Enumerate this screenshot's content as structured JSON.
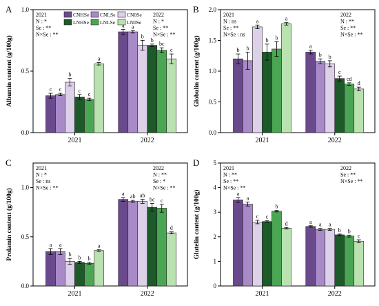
{
  "colors": {
    "CNHSe": "#6a4a8c",
    "CNLSe": "#a98ac9",
    "CN0Se": "#ddd0e9",
    "LNHSe": "#1d5a2a",
    "LNLSe": "#4aa653",
    "LN0Se": "#b9e2b0"
  },
  "legend": [
    "CNHSe",
    "CNLSe",
    "CN0Se",
    "LNHSe",
    "LNLSe",
    "LN0Se"
  ],
  "chart_data": [
    {
      "type": "bar",
      "panel": "A",
      "ylabel": "Albumin content (g/100g)",
      "categories": [
        "2021",
        "2022"
      ],
      "ylim": [
        0,
        1.0
      ],
      "yticks": [
        0.0,
        0.5,
        1.0
      ],
      "series": [
        {
          "name": "CNHSe",
          "values": [
            0.3,
            0.82
          ],
          "errors": [
            0.02,
            0.02
          ],
          "letters": [
            "c",
            "a"
          ]
        },
        {
          "name": "CNLSe",
          "values": [
            0.31,
            0.82
          ],
          "errors": [
            0.01,
            0.01
          ],
          "letters": [
            "c",
            "a"
          ]
        },
        {
          "name": "CN0Se",
          "values": [
            0.41,
            0.71
          ],
          "errors": [
            0.03,
            0.04
          ],
          "letters": [
            "b",
            "b"
          ]
        },
        {
          "name": "LNHSe",
          "values": [
            0.29,
            0.71
          ],
          "errors": [
            0.02,
            0.01
          ],
          "letters": [
            "c",
            "b"
          ]
        },
        {
          "name": "LNLSe",
          "values": [
            0.27,
            0.67
          ],
          "errors": [
            0.01,
            0.02
          ],
          "letters": [
            "c",
            "bc"
          ]
        },
        {
          "name": "LN0Se",
          "values": [
            0.56,
            0.6
          ],
          "errors": [
            0.01,
            0.04
          ],
          "letters": [
            "a",
            "c"
          ]
        }
      ],
      "stats": [
        {
          "year": "2021",
          "lines": [
            "2021",
            "N : *",
            "Se : **",
            "N×Se : **"
          ]
        },
        {
          "year": "2022",
          "lines": [
            "2022",
            "N : *",
            "Se : **",
            "N×Se : **"
          ]
        }
      ]
    },
    {
      "type": "bar",
      "panel": "B",
      "ylabel": "Globulin content (g/100g)",
      "categories": [
        "2021",
        "2022"
      ],
      "ylim": [
        0,
        2.0
      ],
      "yticks": [
        0.0,
        0.5,
        1.0,
        1.5,
        2.0
      ],
      "series": [
        {
          "name": "CNHSe",
          "values": [
            1.2,
            1.31
          ],
          "errors": [
            0.08,
            0.03
          ],
          "letters": [
            "b",
            "a"
          ]
        },
        {
          "name": "CNLSe",
          "values": [
            1.17,
            1.16
          ],
          "errors": [
            0.14,
            0.04
          ],
          "letters": [
            "b",
            "b"
          ]
        },
        {
          "name": "CN0Se",
          "values": [
            1.72,
            1.12
          ],
          "errors": [
            0.03,
            0.05
          ],
          "letters": [
            "a",
            "b"
          ]
        },
        {
          "name": "LNHSe",
          "values": [
            1.31,
            0.88
          ],
          "errors": [
            0.13,
            0.04
          ],
          "letters": [
            "b",
            "c"
          ]
        },
        {
          "name": "LNLSe",
          "values": [
            1.36,
            0.79
          ],
          "errors": [
            0.12,
            0.02
          ],
          "letters": [
            "b",
            "cd"
          ]
        },
        {
          "name": "LN0Se",
          "values": [
            1.77,
            0.71
          ],
          "errors": [
            0.02,
            0.03
          ],
          "letters": [
            "a",
            "d"
          ]
        }
      ],
      "stats": [
        {
          "year": "2021",
          "lines": [
            "2021",
            "N : ns",
            "Se : **",
            "N×Se : ns"
          ]
        },
        {
          "year": "2022",
          "lines": [
            "2022",
            "N : **",
            "Se : **",
            "N×Se : **"
          ]
        }
      ]
    },
    {
      "type": "bar",
      "panel": "C",
      "ylabel": "Prolamin content (g/100g)",
      "categories": [
        "2021",
        "2022"
      ],
      "ylim": [
        0,
        1.25
      ],
      "yticks": [
        0.0,
        0.5,
        1.0
      ],
      "series": [
        {
          "name": "CNHSe",
          "values": [
            0.35,
            0.88
          ],
          "errors": [
            0.03,
            0.02
          ],
          "letters": [
            "a",
            "a"
          ]
        },
        {
          "name": "CNLSe",
          "values": [
            0.35,
            0.86
          ],
          "errors": [
            0.03,
            0.01
          ],
          "letters": [
            "a",
            "ab"
          ]
        },
        {
          "name": "CN0Se",
          "values": [
            0.25,
            0.86
          ],
          "errors": [
            0.03,
            0.02
          ],
          "letters": [
            "b",
            "ab"
          ]
        },
        {
          "name": "LNHSe",
          "values": [
            0.24,
            0.8
          ],
          "errors": [
            0.01,
            0.04
          ],
          "letters": [
            "b",
            "bc"
          ]
        },
        {
          "name": "LNLSe",
          "values": [
            0.23,
            0.79
          ],
          "errors": [
            0.01,
            0.04
          ],
          "letters": [
            "b",
            "c"
          ]
        },
        {
          "name": "LN0Se",
          "values": [
            0.36,
            0.54
          ],
          "errors": [
            0.01,
            0.01
          ],
          "letters": [
            "a",
            "d"
          ]
        }
      ],
      "stats": [
        {
          "year": "2021",
          "lines": [
            "2021",
            "N : *",
            "Se : ns",
            "N×Se : **"
          ]
        },
        {
          "year": "2022",
          "lines": [
            "2022",
            "N : **",
            "Se : *",
            "N×Se : **"
          ]
        }
      ]
    },
    {
      "type": "bar",
      "panel": "D",
      "ylabel": "Glutelin content (g/100g)",
      "categories": [
        "2021",
        "2022"
      ],
      "ylim": [
        0,
        5.0
      ],
      "yticks": [
        0,
        1,
        2,
        3,
        4,
        5
      ],
      "series": [
        {
          "name": "CNHSe",
          "values": [
            3.5,
            2.42
          ],
          "errors": [
            0.1,
            0.03
          ],
          "letters": [
            "a",
            "a"
          ]
        },
        {
          "name": "CNLSe",
          "values": [
            3.33,
            2.3
          ],
          "errors": [
            0.08,
            0.04
          ],
          "letters": [
            "a",
            "a"
          ]
        },
        {
          "name": "CN0Se",
          "values": [
            2.6,
            2.3
          ],
          "errors": [
            0.07,
            0.04
          ],
          "letters": [
            "c",
            "a"
          ]
        },
        {
          "name": "LNHSe",
          "values": [
            2.62,
            2.08
          ],
          "errors": [
            0.03,
            0.03
          ],
          "letters": [
            "c",
            "b"
          ]
        },
        {
          "name": "LNLSe",
          "values": [
            3.04,
            2.03
          ],
          "errors": [
            0.03,
            0.04
          ],
          "letters": [
            "b",
            "b"
          ]
        },
        {
          "name": "LN0Se",
          "values": [
            2.35,
            1.82
          ],
          "errors": [
            0.03,
            0.06
          ],
          "letters": [
            "d",
            "c"
          ]
        }
      ],
      "stats": [
        {
          "year": "2021",
          "lines": [
            "2021",
            "N : **",
            "Se : **",
            "N×Se : **"
          ]
        },
        {
          "year": "2022",
          "lines": [
            "2022",
            "Se : **",
            "N×Se : **"
          ]
        }
      ]
    }
  ]
}
